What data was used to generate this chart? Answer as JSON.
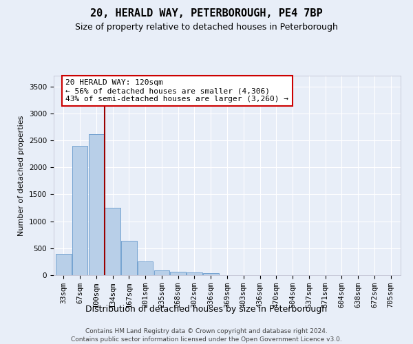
{
  "title": "20, HERALD WAY, PETERBOROUGH, PE4 7BP",
  "subtitle": "Size of property relative to detached houses in Peterborough",
  "xlabel": "Distribution of detached houses by size in Peterborough",
  "ylabel": "Number of detached properties",
  "footer_line1": "Contains HM Land Registry data © Crown copyright and database right 2024.",
  "footer_line2": "Contains public sector information licensed under the Open Government Licence v3.0.",
  "annotation_title": "20 HERALD WAY: 120sqm",
  "annotation_line1": "← 56% of detached houses are smaller (4,306)",
  "annotation_line2": "43% of semi-detached houses are larger (3,260) →",
  "bar_labels": [
    "33sqm",
    "67sqm",
    "100sqm",
    "134sqm",
    "167sqm",
    "201sqm",
    "235sqm",
    "268sqm",
    "302sqm",
    "336sqm",
    "369sqm",
    "403sqm",
    "436sqm",
    "470sqm",
    "504sqm",
    "537sqm",
    "571sqm",
    "604sqm",
    "638sqm",
    "672sqm",
    "705sqm"
  ],
  "bar_values": [
    390,
    2400,
    2610,
    1245,
    640,
    255,
    95,
    58,
    55,
    40,
    0,
    0,
    0,
    0,
    0,
    0,
    0,
    0,
    0,
    0,
    0
  ],
  "bar_color": "#b8cfe8",
  "bar_edge_color": "#6699cc",
  "vline_x": 2.5,
  "ylim": [
    0,
    3700
  ],
  "yticks": [
    0,
    500,
    1000,
    1500,
    2000,
    2500,
    3000,
    3500
  ],
  "annotation_box_edgecolor": "#cc0000",
  "vline_color": "#990000",
  "bg_color": "#e8eef8",
  "grid_color": "#ffffff",
  "title_fontsize": 11,
  "subtitle_fontsize": 9,
  "ylabel_fontsize": 8,
  "xlabel_fontsize": 9,
  "tick_fontsize": 7.5,
  "annotation_fontsize": 8,
  "footer_fontsize": 6.5
}
